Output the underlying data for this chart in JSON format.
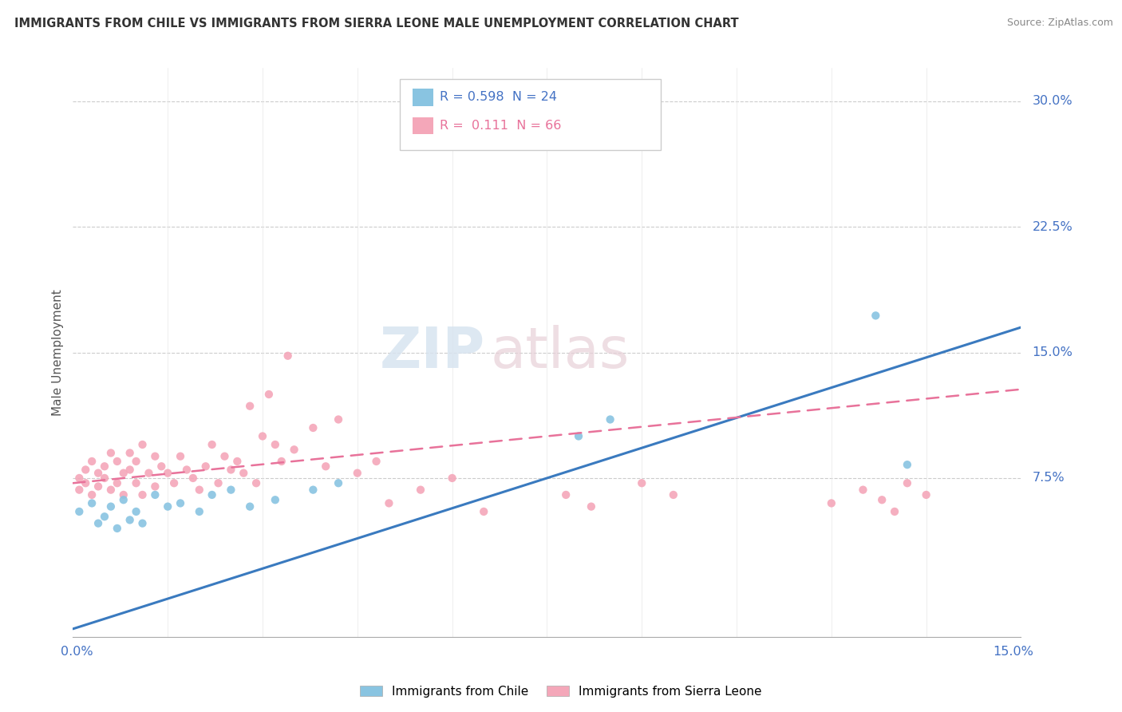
{
  "title": "IMMIGRANTS FROM CHILE VS IMMIGRANTS FROM SIERRA LEONE MALE UNEMPLOYMENT CORRELATION CHART",
  "source": "Source: ZipAtlas.com",
  "ylabel": "Male Unemployment",
  "right_yticks": [
    "30.0%",
    "22.5%",
    "15.0%",
    "7.5%"
  ],
  "right_ytick_vals": [
    0.3,
    0.225,
    0.15,
    0.075
  ],
  "watermark_zip": "ZIP",
  "watermark_atlas": "atlas",
  "legend_chile_R": "0.598",
  "legend_chile_N": "24",
  "legend_sierra_R": "0.111",
  "legend_sierra_N": "66",
  "chile_color": "#89c4e1",
  "sierra_color": "#f4a7b9",
  "chile_line_color": "#3a7abf",
  "sierra_line_color": "#e8729a",
  "xmin": 0.0,
  "xmax": 0.15,
  "ymin": -0.02,
  "ymax": 0.32,
  "chile_x": [
    0.001,
    0.003,
    0.004,
    0.005,
    0.006,
    0.007,
    0.008,
    0.009,
    0.01,
    0.011,
    0.013,
    0.015,
    0.017,
    0.02,
    0.022,
    0.025,
    0.028,
    0.032,
    0.038,
    0.042,
    0.08,
    0.085,
    0.127,
    0.132
  ],
  "chile_y": [
    0.055,
    0.06,
    0.048,
    0.052,
    0.058,
    0.045,
    0.062,
    0.05,
    0.055,
    0.048,
    0.065,
    0.058,
    0.06,
    0.055,
    0.065,
    0.068,
    0.058,
    0.062,
    0.068,
    0.072,
    0.1,
    0.11,
    0.172,
    0.083
  ],
  "sierra_x": [
    0.001,
    0.001,
    0.002,
    0.002,
    0.003,
    0.003,
    0.004,
    0.004,
    0.005,
    0.005,
    0.006,
    0.006,
    0.007,
    0.007,
    0.008,
    0.008,
    0.009,
    0.009,
    0.01,
    0.01,
    0.011,
    0.011,
    0.012,
    0.013,
    0.013,
    0.014,
    0.015,
    0.016,
    0.017,
    0.018,
    0.019,
    0.02,
    0.021,
    0.022,
    0.023,
    0.024,
    0.025,
    0.026,
    0.027,
    0.028,
    0.029,
    0.03,
    0.031,
    0.032,
    0.033,
    0.034,
    0.035,
    0.038,
    0.04,
    0.042,
    0.045,
    0.048,
    0.05,
    0.055,
    0.06,
    0.065,
    0.078,
    0.082,
    0.09,
    0.095,
    0.12,
    0.125,
    0.128,
    0.13,
    0.132,
    0.135
  ],
  "sierra_y": [
    0.075,
    0.068,
    0.072,
    0.08,
    0.065,
    0.085,
    0.078,
    0.07,
    0.082,
    0.075,
    0.068,
    0.09,
    0.072,
    0.085,
    0.078,
    0.065,
    0.08,
    0.09,
    0.072,
    0.085,
    0.065,
    0.095,
    0.078,
    0.07,
    0.088,
    0.082,
    0.078,
    0.072,
    0.088,
    0.08,
    0.075,
    0.068,
    0.082,
    0.095,
    0.072,
    0.088,
    0.08,
    0.085,
    0.078,
    0.118,
    0.072,
    0.1,
    0.125,
    0.095,
    0.085,
    0.148,
    0.092,
    0.105,
    0.082,
    0.11,
    0.078,
    0.085,
    0.06,
    0.068,
    0.075,
    0.055,
    0.065,
    0.058,
    0.072,
    0.065,
    0.06,
    0.068,
    0.062,
    0.055,
    0.072,
    0.065
  ],
  "chile_line_x0": 0.0,
  "chile_line_y0": -0.015,
  "chile_line_x1": 0.15,
  "chile_line_y1": 0.165,
  "sierra_line_x0": 0.0,
  "sierra_line_y0": 0.072,
  "sierra_line_x1": 0.15,
  "sierra_line_y1": 0.128
}
